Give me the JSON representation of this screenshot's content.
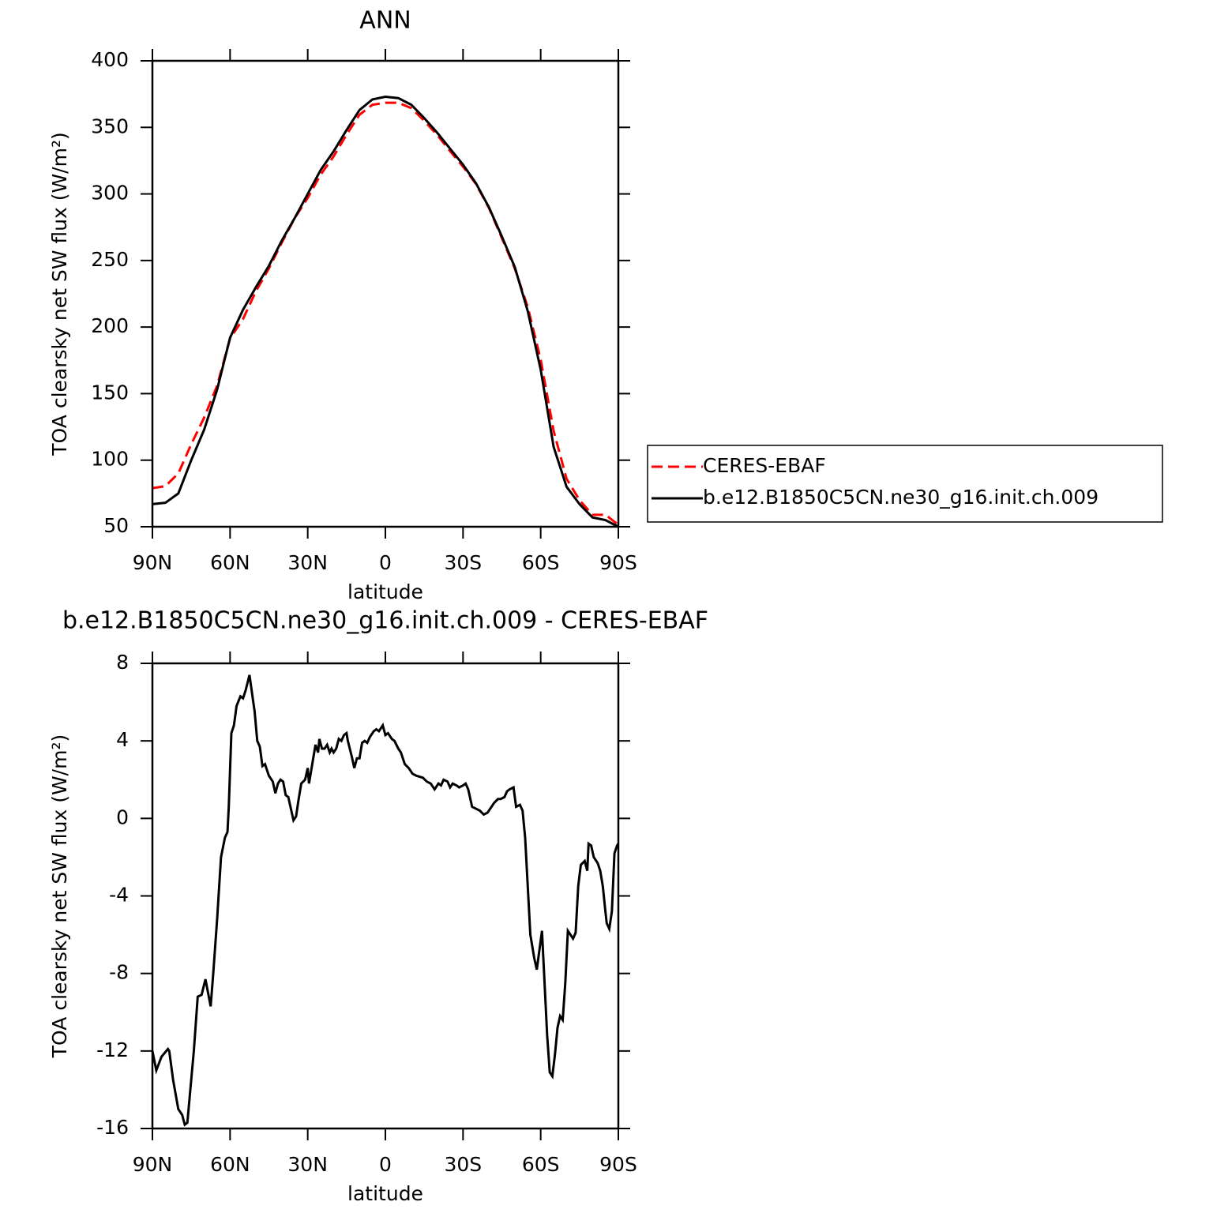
{
  "chart_data": [
    {
      "type": "line",
      "title": "ANN",
      "xlabel": "latitude",
      "ylabel": "TOA clearsky net SW flux (W/m²)",
      "x": [
        90,
        85,
        80,
        75,
        70,
        65,
        60,
        55,
        50,
        45,
        40,
        35,
        30,
        25,
        20,
        15,
        10,
        5,
        0,
        -5,
        -10,
        -15,
        -20,
        -25,
        -30,
        -35,
        -40,
        -45,
        -50,
        -55,
        -60,
        -65,
        -70,
        -75,
        -80,
        -85,
        -90
      ],
      "series": [
        {
          "name": "CERES-EBAF",
          "color": "#ff0000",
          "dash": true,
          "values": [
            79,
            80.5,
            90,
            112,
            132,
            156,
            191.5,
            206,
            227,
            244,
            263.5,
            282,
            297,
            314.5,
            328.2,
            344.5,
            359.5,
            367,
            368.5,
            368.5,
            364.5,
            355,
            344.3,
            332.2,
            320.5,
            307.5,
            289.5,
            266.8,
            244,
            215,
            175.5,
            122,
            86,
            70,
            59,
            59,
            51.5
          ]
        },
        {
          "name": "b.e12.B1850C5CN.ne30_g16.init.ch.009",
          "color": "#000000",
          "dash": false,
          "values": [
            67,
            68,
            75,
            100,
            123,
            153,
            192,
            213,
            230,
            246,
            265,
            282,
            300,
            318,
            332,
            348,
            363,
            371,
            373,
            372,
            367,
            357,
            346,
            334,
            322,
            308,
            290,
            268,
            245,
            212,
            168,
            110,
            80,
            67,
            57,
            55,
            50
          ]
        }
      ],
      "xlim": [
        90,
        -90
      ],
      "xticks": [
        {
          "value": 90,
          "label": "90N"
        },
        {
          "value": 60,
          "label": "60N"
        },
        {
          "value": 30,
          "label": "30N"
        },
        0,
        {
          "value": -30,
          "label": "30S"
        },
        {
          "value": -60,
          "label": "60S"
        },
        {
          "value": -90,
          "label": "90S"
        }
      ],
      "ylim": [
        50,
        400
      ],
      "yticks": [
        50,
        100,
        150,
        200,
        250,
        300,
        350,
        400
      ],
      "legend": "right"
    },
    {
      "type": "line",
      "title": "b.e12.B1850C5CN.ne30_g16.init.ch.009 - CERES-EBAF",
      "xlabel": "latitude",
      "ylabel": "TOA clearsky net SW flux (W/m²)",
      "x": [
        90,
        88.5,
        86.5,
        84,
        83.5,
        82,
        80,
        78.5,
        77.5,
        76.5,
        74,
        72.5,
        71,
        69.5,
        67.5,
        66.5,
        65,
        63.5,
        62,
        61,
        60.5,
        59.5,
        58.5,
        57.5,
        56,
        55,
        54,
        52.5,
        50.5,
        49.5,
        48.5,
        47.5,
        46.5,
        45,
        43.5,
        42.5,
        41.5,
        40.5,
        39.5,
        38.5,
        37.5,
        36.5,
        35.5,
        34.5,
        33.5,
        32.5,
        31,
        30,
        29.5,
        28,
        27,
        26,
        25.5,
        24.5,
        23.5,
        22.5,
        21.5,
        20.8,
        20,
        19,
        18,
        17,
        16,
        15,
        14.5,
        13,
        12,
        11,
        10,
        9,
        8,
        7,
        6,
        4.5,
        3.5,
        2.5,
        1,
        0,
        -1,
        -2.5,
        -3.5,
        -5,
        -6,
        -7.5,
        -9,
        -10.5,
        -12,
        -14.5,
        -16,
        -17.5,
        -18.5,
        -19,
        -20.5,
        -21.5,
        -22.5,
        -24,
        -25,
        -26,
        -27.5,
        -28.5,
        -30,
        -31,
        -32,
        -33.5,
        -35,
        -36.5,
        -38,
        -39.5,
        -40.5,
        -42,
        -43.5,
        -44.5,
        -46,
        -47,
        -48,
        -49.5,
        -50.5,
        -52,
        -53,
        -54,
        -55,
        -56,
        -57.5,
        -58.5,
        -59,
        -60.5,
        -61.5,
        -62.5,
        -63.5,
        -64.5,
        -65.5,
        -66.5,
        -67.5,
        -68.5,
        -69.5,
        -70.5,
        -71.5,
        -72.5,
        -73.5,
        -74.5,
        -75.5,
        -77,
        -78,
        -78.5,
        -79.5,
        -80.5,
        -82,
        -83,
        -84,
        -85,
        -85.5,
        -86.5,
        -87.5,
        -88.5,
        -89.5,
        -90
      ],
      "values": [
        -12,
        -13,
        -12.3,
        -11.9,
        -12,
        -13.5,
        -15,
        -15.3,
        -15.8,
        -15.7,
        -12,
        -9.2,
        -9.1,
        -8.3,
        -9.7,
        -8,
        -5.2,
        -2,
        -1,
        -0.7,
        0.6,
        4.4,
        4.8,
        5.8,
        6.3,
        6.2,
        6.6,
        7.4,
        5.5,
        4,
        3.7,
        2.7,
        2.8,
        2.2,
        1.9,
        1.3,
        1.8,
        2,
        1.9,
        1.2,
        1.1,
        0.5,
        -0.1,
        0.1,
        1,
        1.8,
        2,
        2.6,
        1.8,
        3,
        3.8,
        3.4,
        4.1,
        3.6,
        3.6,
        3.8,
        3.4,
        3.6,
        3.4,
        3.6,
        4.1,
        4,
        4.3,
        4.4,
        4,
        3.2,
        2.6,
        3.1,
        3.1,
        3.9,
        4,
        3.9,
        4.2,
        4.5,
        4.6,
        4.5,
        4.8,
        4.3,
        4.4,
        4.1,
        4,
        3.6,
        3.4,
        2.8,
        2.6,
        2.3,
        2.2,
        2.1,
        1.9,
        1.8,
        1.6,
        1.5,
        1.8,
        1.7,
        2,
        1.9,
        1.6,
        1.8,
        1.7,
        1.6,
        1.7,
        1.8,
        1.5,
        0.6,
        0.5,
        0.4,
        0.2,
        0.3,
        0.5,
        0.8,
        1,
        1,
        1.1,
        1.4,
        1.5,
        1.6,
        0.6,
        0.7,
        0.4,
        -1,
        -3.5,
        -6,
        -7.2,
        -7.8,
        -7.3,
        -5.8,
        -8.5,
        -11.2,
        -13.1,
        -13.3,
        -12.2,
        -10.8,
        -10.2,
        -10.4,
        -8.5,
        -5.8,
        -6,
        -6.2,
        -5.9,
        -3.5,
        -2.4,
        -2.2,
        -2.7,
        -1.3,
        -1.4,
        -2,
        -2.3,
        -2.7,
        -3.5,
        -4.8,
        -5.4,
        -5.7,
        -4.8,
        -1.8,
        -1.4,
        -1.3
      ],
      "color": "#000000",
      "xlim": [
        90,
        -90
      ],
      "xticks": [
        {
          "value": 90,
          "label": "90N"
        },
        {
          "value": 60,
          "label": "60N"
        },
        {
          "value": 30,
          "label": "30N"
        },
        0,
        {
          "value": -30,
          "label": "30S"
        },
        {
          "value": -60,
          "label": "60S"
        },
        {
          "value": -90,
          "label": "90S"
        }
      ],
      "ylim": [
        -16,
        8
      ],
      "yticks": [
        -16,
        -12,
        -8,
        -4,
        0,
        4,
        8
      ]
    }
  ]
}
